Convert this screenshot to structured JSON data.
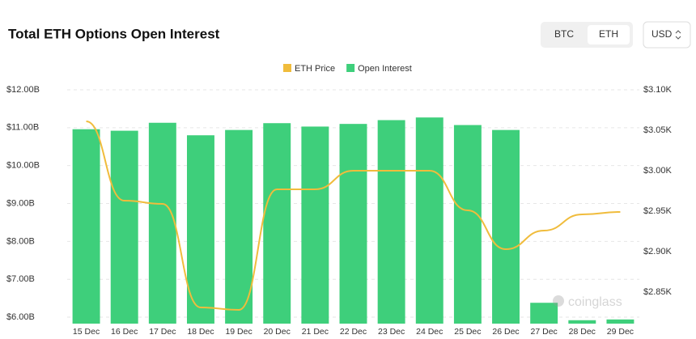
{
  "ui": {
    "buttons": [
      "BTC",
      "ETH"
    ],
    "currency": "USD",
    "watermark": "coinglass"
  },
  "chart_data": {
    "type": "bar",
    "title": "Total ETH Options Open Interest",
    "categories": [
      "15 Dec",
      "16 Dec",
      "17 Dec",
      "18 Dec",
      "19 Dec",
      "20 Dec",
      "21 Dec",
      "22 Dec",
      "23 Dec",
      "24 Dec",
      "25 Dec",
      "26 Dec",
      "27 Dec",
      "28 Dec",
      "29 Dec"
    ],
    "series": [
      {
        "name": "ETH Price",
        "color": "#f0bc3c",
        "type": "line",
        "axis": "y2",
        "values": [
          3.061,
          2.963,
          2.959,
          2.831,
          2.828,
          2.977,
          2.977,
          3.0,
          3.0,
          3.0,
          2.951,
          2.903,
          2.926,
          2.946,
          2.949
        ]
      },
      {
        "name": "Open Interest",
        "color": "#3ecf7b",
        "type": "bar",
        "values": [
          10.96,
          10.92,
          11.13,
          10.8,
          10.94,
          11.12,
          11.03,
          11.1,
          11.2,
          11.27,
          11.07,
          10.94,
          6.38,
          5.92,
          5.94
        ]
      }
    ],
    "ylim": [
      5.83,
      12.0
    ],
    "yticks": [
      {
        "value": 6,
        "label": "$6.00B"
      },
      {
        "value": 7,
        "label": "$7.00B"
      },
      {
        "value": 8,
        "label": "$8.00B"
      },
      {
        "value": 9,
        "label": "$9.00B"
      },
      {
        "value": 10,
        "label": "$10.00B"
      },
      {
        "value": 11,
        "label": "$11.00B"
      },
      {
        "value": 12,
        "label": "$12.00B"
      }
    ],
    "y2lim": [
      2.811,
      3.1
    ],
    "y2ticks": [
      {
        "value": 2.85,
        "label": "$2.85K"
      },
      {
        "value": 2.9,
        "label": "$2.90K"
      },
      {
        "value": 2.95,
        "label": "$2.95K"
      },
      {
        "value": 3.0,
        "label": "$3.00K"
      },
      {
        "value": 3.05,
        "label": "$3.05K"
      },
      {
        "value": 3.1,
        "label": "$3.10K"
      }
    ],
    "grid": true
  }
}
